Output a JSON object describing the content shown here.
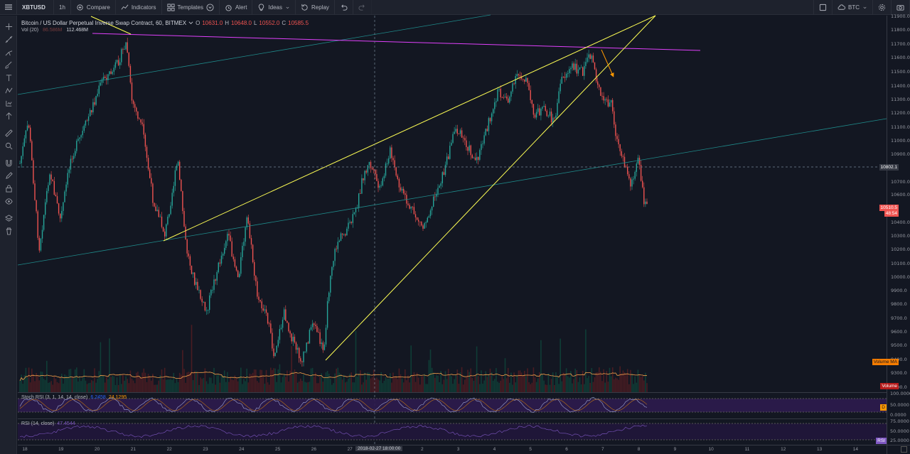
{
  "topbar": {
    "symbol": "XBTUSD",
    "interval": "1h",
    "compare": "Compare",
    "indicators": "Indicators",
    "templates": "Templates",
    "alert": "Alert",
    "ideas": "Ideas",
    "replay": "Replay",
    "currency": "BTC"
  },
  "legend": {
    "title": "Bitcoin / US Dollar Perpetual Inverse Swap Contract, 60, BITMEX",
    "open_label": "O",
    "open": "10631.0",
    "high_label": "H",
    "high": "10648.0",
    "low_label": "L",
    "low": "10552.0",
    "close_label": "C",
    "close": "10585.5",
    "vol_label": "Vol (20)",
    "vol_value_a": "86.586M",
    "vol_value_b": "112.468M"
  },
  "stoch": {
    "label": "Stoch RSI (3, 1, 14, 14, close)",
    "k": "6.2458",
    "d": "24.1295"
  },
  "rsi": {
    "label": "RSI (14, close)",
    "value": "47.4544"
  },
  "price_axis": [
    "11900.0",
    "11800.0",
    "11700.0",
    "11600.0",
    "11500.0",
    "11400.0",
    "11300.0",
    "11200.0",
    "11100.0",
    "11000.0",
    "10900.0",
    "10700.0",
    "10600.0",
    "10400.0",
    "10300.0",
    "10200.0",
    "10100.0",
    "10000.0",
    "9900.0",
    "9800.0",
    "9700.0",
    "9600.0",
    "9500.0",
    "9400.0",
    "9300.0",
    "9200.0"
  ],
  "price_tags": {
    "crosshair": "10802.1",
    "last": "10510.5",
    "countdown": "48:54",
    "volume_ma": "Volume MA",
    "volume": "Volume"
  },
  "stoch_axis": [
    "100.0000",
    "50.0000",
    "0.0000"
  ],
  "rsi_axis": [
    "75.0000",
    "50.0000",
    "25.0000"
  ],
  "pane_tags": {
    "stoch": "D",
    "rsi": "RSI"
  },
  "dates": [
    "18",
    "19",
    "20",
    "21",
    "22",
    "23",
    "24",
    "25",
    "26",
    "27",
    "Mar",
    "2",
    "3",
    "4",
    "5",
    "6",
    "7",
    "8",
    "9",
    "10",
    "11",
    "12",
    "13",
    "14"
  ],
  "crosshair_date": "2018-02-27 18:00:00",
  "colors": {
    "bg": "#131722",
    "up": "#26a69a",
    "down": "#ef5350",
    "wedge": "#ffff54",
    "resistance": "#e040fb",
    "channel": "#1f8a8a",
    "arrow": "#ff9800",
    "stoch_bg": "#2d1b4e"
  }
}
